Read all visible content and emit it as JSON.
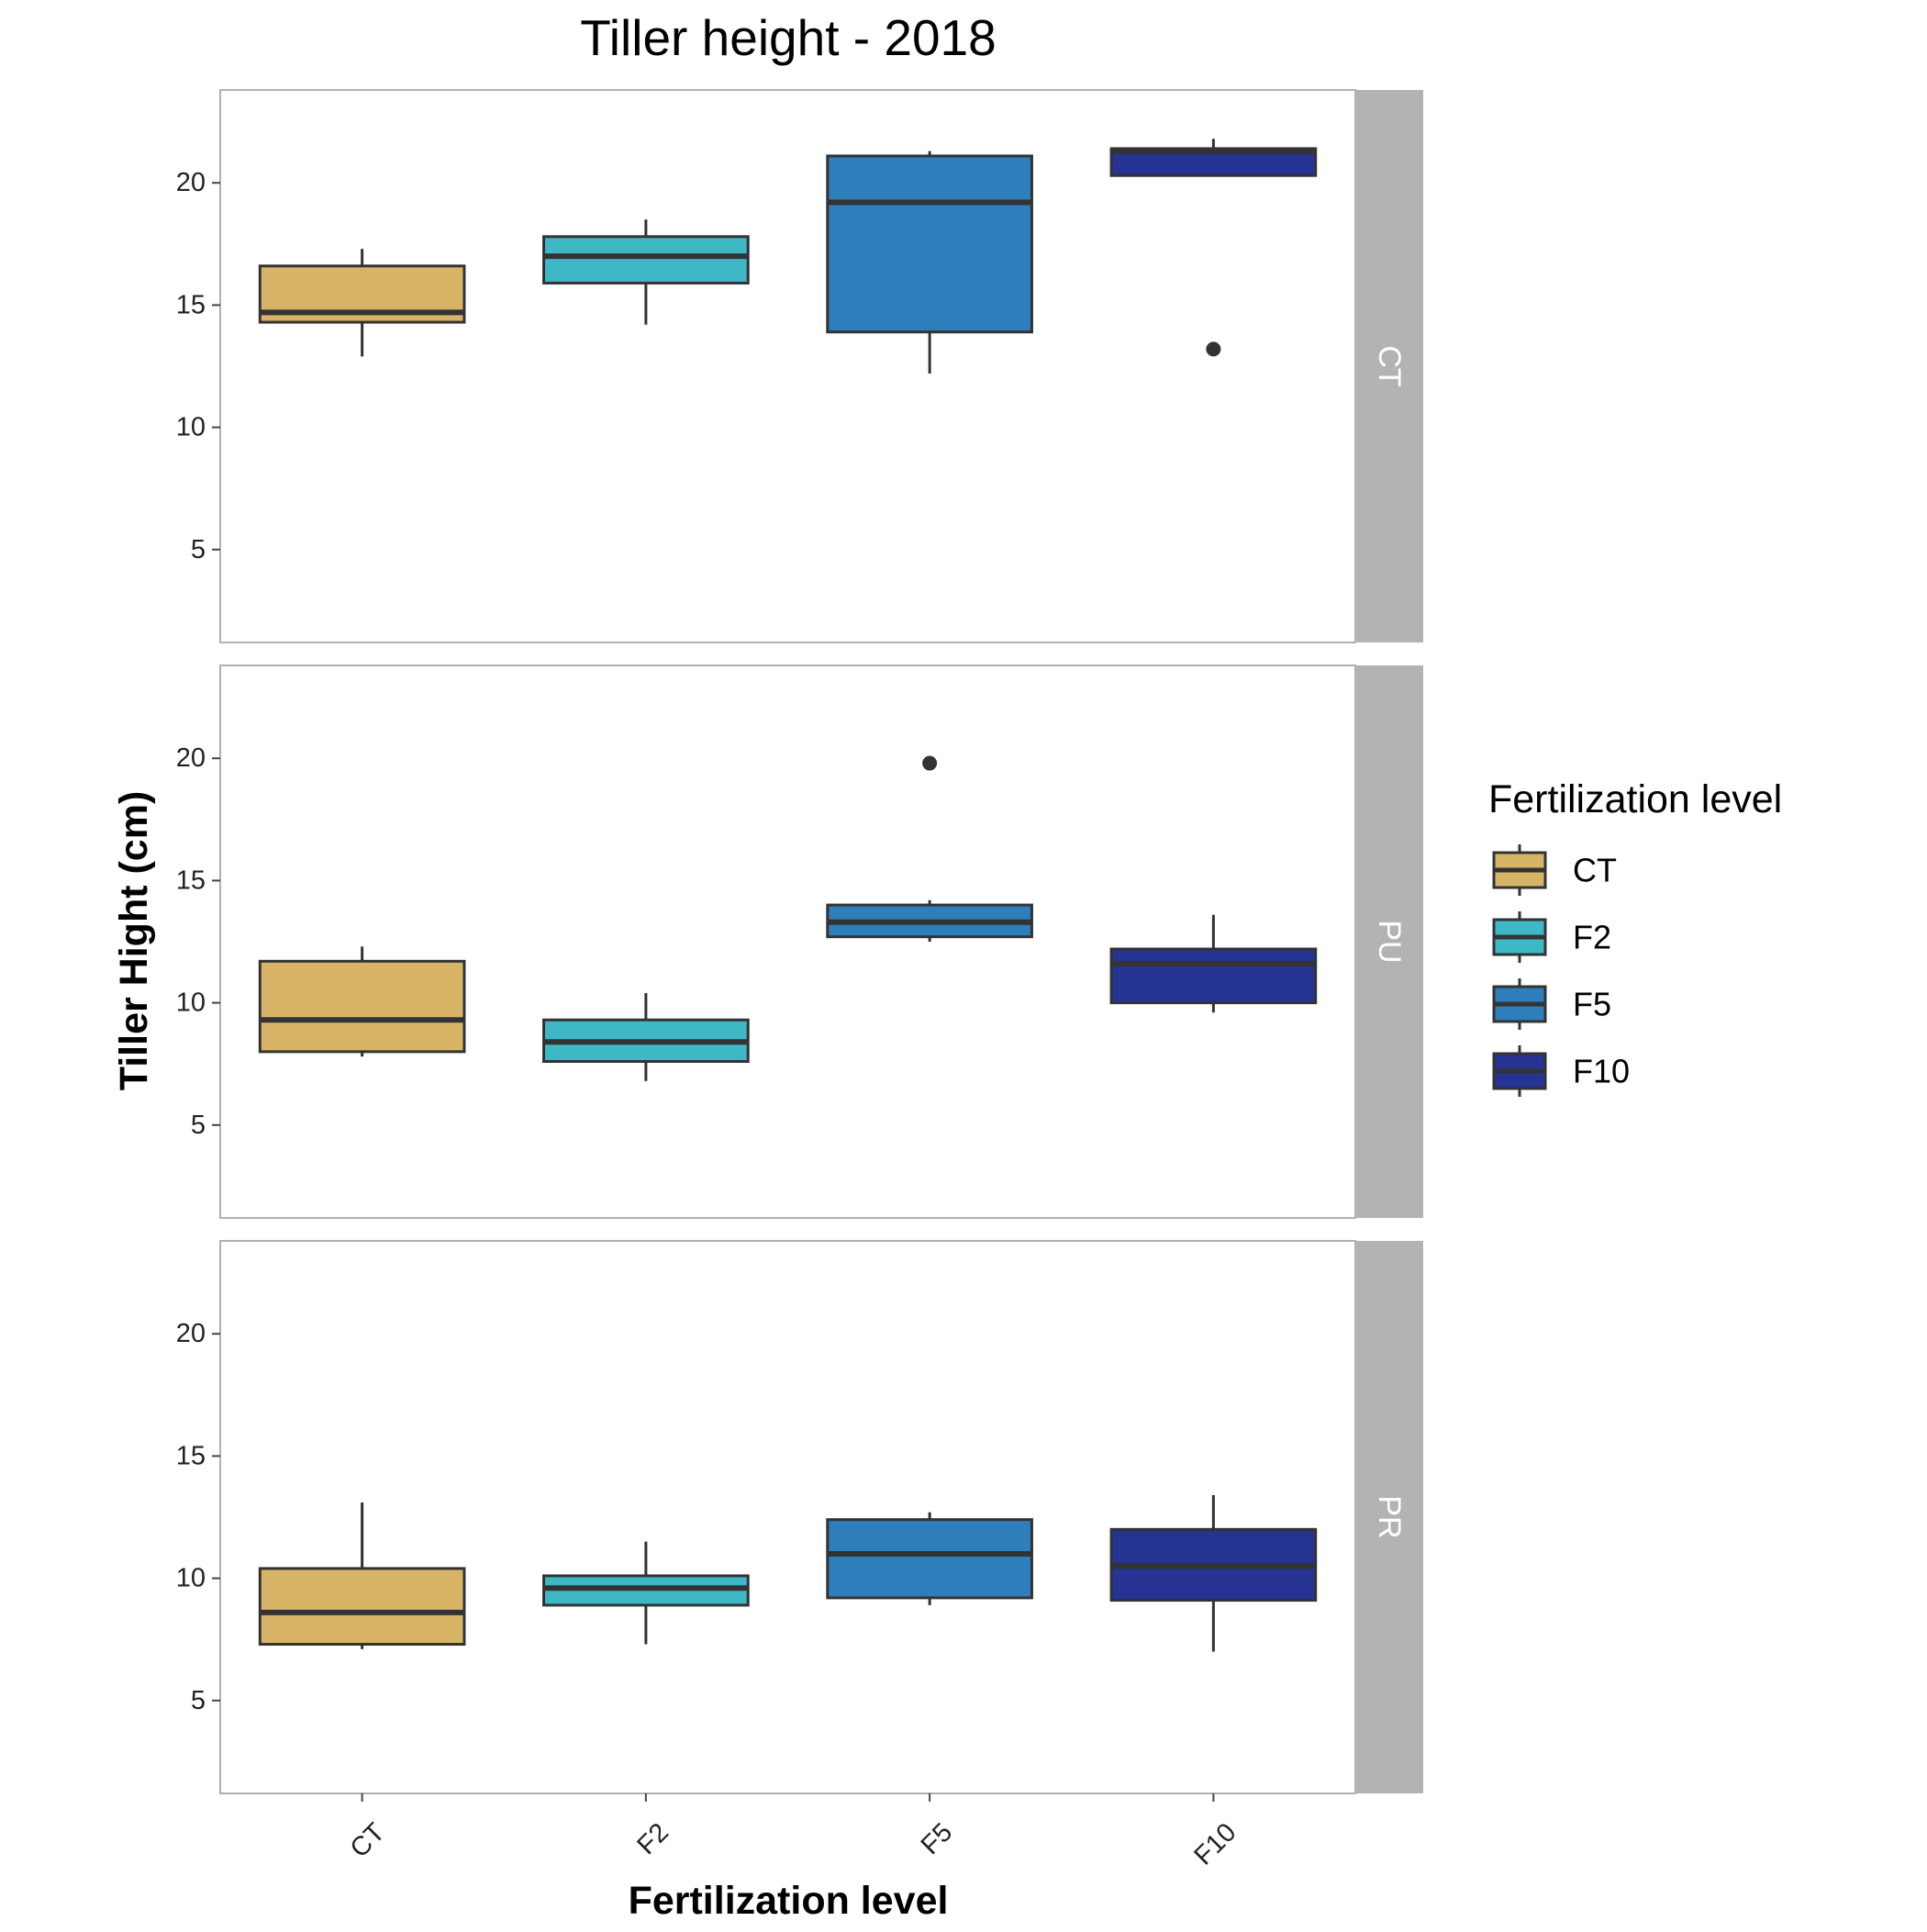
{
  "chart_data": {
    "type": "boxplot",
    "title": "Tiller height - 2018",
    "xlabel": "Fertilization level",
    "ylabel": "Tiller Hight (cm)",
    "ylim": [
      1.2,
      23.8
    ],
    "yticks": [
      5,
      10,
      15,
      20
    ],
    "categories": [
      "CT",
      "F2",
      "F5",
      "F10"
    ],
    "facets": [
      {
        "label": "CT",
        "boxes": [
          {
            "category": "CT",
            "whisker_low": 12.9,
            "q1": 14.3,
            "median": 14.7,
            "q3": 16.6,
            "whisker_high": 17.3,
            "outliers": []
          },
          {
            "category": "F2",
            "whisker_low": 14.2,
            "q1": 15.9,
            "median": 17.0,
            "q3": 17.8,
            "whisker_high": 18.5,
            "outliers": []
          },
          {
            "category": "F5",
            "whisker_low": 12.2,
            "q1": 13.9,
            "median": 19.2,
            "q3": 21.1,
            "whisker_high": 21.3,
            "outliers": []
          },
          {
            "category": "F10",
            "whisker_low": 20.3,
            "q1": 20.3,
            "median": 21.3,
            "q3": 21.4,
            "whisker_high": 21.8,
            "outliers": [
              13.2
            ]
          }
        ]
      },
      {
        "label": "PU",
        "boxes": [
          {
            "category": "CT",
            "whisker_low": 7.8,
            "q1": 8.0,
            "median": 9.3,
            "q3": 11.7,
            "whisker_high": 12.3,
            "outliers": []
          },
          {
            "category": "F2",
            "whisker_low": 6.8,
            "q1": 7.6,
            "median": 8.4,
            "q3": 9.3,
            "whisker_high": 10.4,
            "outliers": []
          },
          {
            "category": "F5",
            "whisker_low": 12.5,
            "q1": 12.7,
            "median": 13.3,
            "q3": 14.0,
            "whisker_high": 14.2,
            "outliers": [
              19.8
            ]
          },
          {
            "category": "F10",
            "whisker_low": 9.6,
            "q1": 10.0,
            "median": 11.6,
            "q3": 12.2,
            "whisker_high": 13.6,
            "outliers": []
          }
        ]
      },
      {
        "label": "PR",
        "boxes": [
          {
            "category": "CT",
            "whisker_low": 7.1,
            "q1": 7.3,
            "median": 8.6,
            "q3": 10.4,
            "whisker_high": 13.1,
            "outliers": []
          },
          {
            "category": "F2",
            "whisker_low": 7.3,
            "q1": 8.9,
            "median": 9.6,
            "q3": 10.1,
            "whisker_high": 11.5,
            "outliers": []
          },
          {
            "category": "F5",
            "whisker_low": 8.9,
            "q1": 9.2,
            "median": 11.0,
            "q3": 12.4,
            "whisker_high": 12.7,
            "outliers": []
          },
          {
            "category": "F10",
            "whisker_low": 7.0,
            "q1": 9.1,
            "median": 10.5,
            "q3": 12.0,
            "whisker_high": 13.4,
            "outliers": []
          }
        ]
      }
    ],
    "legend": {
      "title": "Fertilization level",
      "position": "right",
      "items": [
        {
          "label": "CT",
          "color": "#D8B566"
        },
        {
          "label": "F2",
          "color": "#3FB8C6"
        },
        {
          "label": "F5",
          "color": "#2E7EBC"
        },
        {
          "label": "F10",
          "color": "#253393"
        }
      ]
    },
    "grid": false,
    "colors": {
      "strip_background": "#B3B3B3",
      "strip_text": "#FFFFFF",
      "panel_border": "#B0B0B0",
      "box_outline": "#333333"
    }
  }
}
